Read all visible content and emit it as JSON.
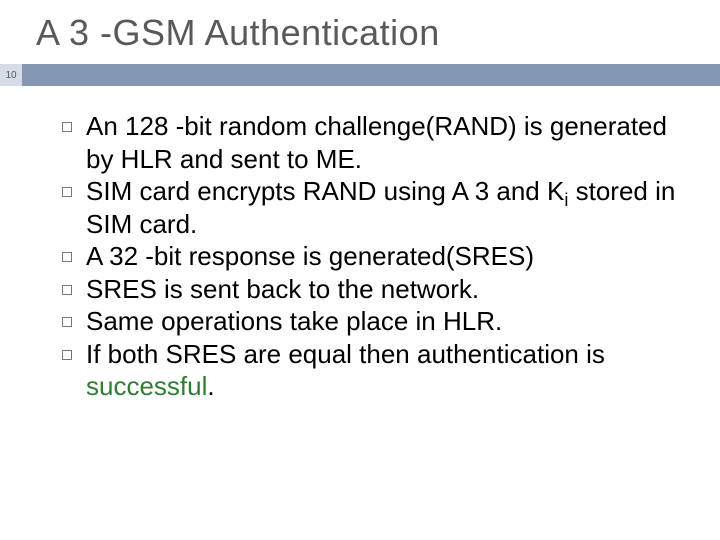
{
  "slide": {
    "title": "A 3 -GSM Authentication",
    "page_number": "10",
    "bar_color": "#8497b0",
    "page_box_color": "#d6dce5",
    "title_color": "#595959",
    "title_fontsize": 36,
    "body_fontsize": 26,
    "bullets": [
      {
        "text": "An 128 -bit random challenge(RAND) is generated by HLR and sent to ME."
      },
      {
        "text_html": "SIM card encrypts RAND using A 3 and K<sub>i</sub> stored in SIM card."
      },
      {
        "text": "A 32 -bit response is generated(SRES)"
      },
      {
        "text": "SRES is sent back to the network."
      },
      {
        "text": "Same operations take place in HLR."
      },
      {
        "text_html": "If both SRES are equal then authentication is <span class=\"success\">successful</span>."
      }
    ],
    "success_color": "#2e7d32"
  }
}
